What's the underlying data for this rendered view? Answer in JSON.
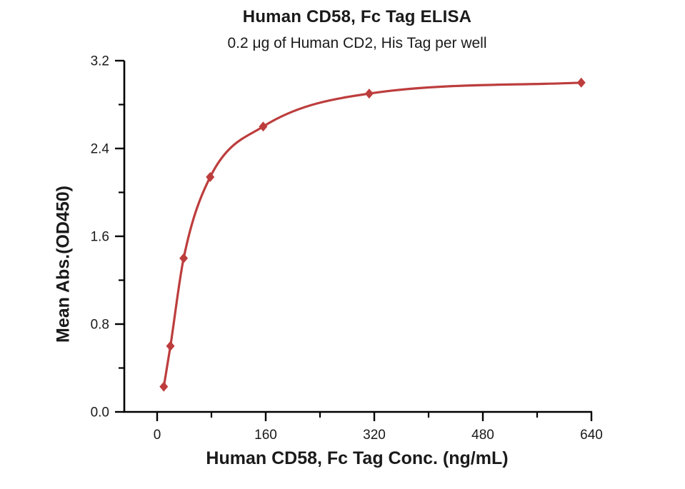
{
  "chart": {
    "title": "Human CD58, Fc Tag ELISA",
    "subtitle": "0.2 μg of Human CD2, His Tag per well",
    "x_axis": {
      "label": "Human CD58, Fc Tag Conc. (ng/mL)",
      "min": 0,
      "max": 640,
      "major_ticks": [
        0,
        160,
        320,
        480,
        640
      ],
      "major_tick_labels": [
        "0",
        "160",
        "320",
        "480",
        "640"
      ],
      "minor_ticks": [
        80,
        240,
        400,
        560
      ]
    },
    "y_axis": {
      "label": "Mean Abs.(OD450)",
      "min": 0,
      "max": 3.2,
      "major_ticks": [
        0,
        0.8,
        1.6,
        2.4,
        3.2
      ],
      "major_tick_labels": [
        "0.0",
        "0.8",
        "1.6",
        "2.4",
        "3.2"
      ],
      "minor_ticks": [
        0.4,
        1.2,
        2.0,
        2.8
      ]
    },
    "colors": {
      "series": "#bd3d3d",
      "axis": "#000000",
      "text": "#1a1a1a",
      "background": "#ffffff"
    }
  },
  "chart_data": {
    "type": "scatter",
    "title": "Human CD58, Fc Tag ELISA",
    "subtitle": "0.2 μg of Human CD2, His Tag per well",
    "xlabel": "Human CD58, Fc Tag Conc. (ng/mL)",
    "ylabel": "Mean Abs.(OD450)",
    "xlim": [
      0,
      640
    ],
    "ylim": [
      0,
      3.2
    ],
    "grid": false,
    "legend": "none",
    "series": [
      {
        "name": "Human CD58, Fc Tag",
        "marker": "diamond",
        "line": "4PL sigmoidal fit curve",
        "x": [
          9.77,
          19.53,
          39.06,
          78.13,
          156.25,
          312.5,
          625
        ],
        "y": [
          0.23,
          0.6,
          1.4,
          2.14,
          2.6,
          2.9,
          3.0
        ]
      }
    ]
  }
}
